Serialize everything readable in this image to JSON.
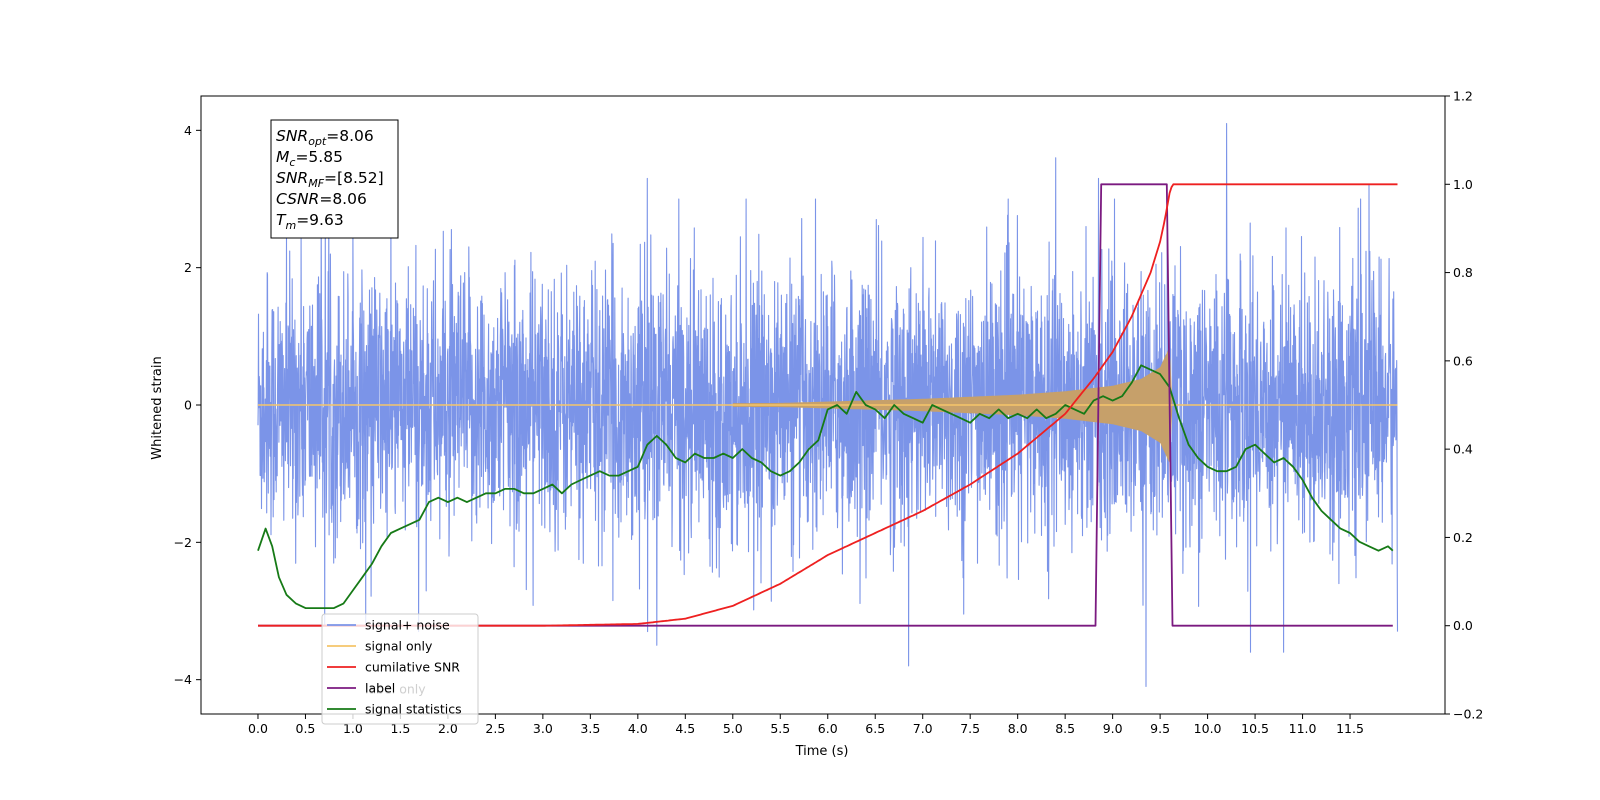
{
  "chart_data": {
    "type": "line",
    "title": "",
    "xlabel": "Time (s)",
    "ylabel": "Whitened strain",
    "y2label": "",
    "xlim": [
      -0.6,
      12.5
    ],
    "ylim": [
      -4.5,
      4.5
    ],
    "y2lim": [
      -0.2,
      1.2
    ],
    "x_ticks": [
      0.0,
      0.5,
      1.0,
      1.5,
      2.0,
      2.5,
      3.0,
      3.5,
      4.0,
      4.5,
      5.0,
      5.5,
      6.0,
      6.5,
      7.0,
      7.5,
      8.0,
      8.5,
      9.0,
      9.5,
      10.0,
      10.5,
      11.0,
      11.5
    ],
    "x_tick_labels": [
      "0.0",
      "0.5",
      "1.0",
      "1.5",
      "2.0",
      "2.5",
      "3.0",
      "3.5",
      "4.0",
      "4.5",
      "5.0",
      "5.5",
      "6.0",
      "6.5",
      "7.0",
      "7.5",
      "8.0",
      "8.5",
      "9.0",
      "9.5",
      "10.0",
      "10.5",
      "11.0",
      "11.5"
    ],
    "y_ticks": [
      -4,
      -2,
      0,
      2,
      4
    ],
    "y_tick_labels": [
      "−4",
      "−2",
      "0",
      "2",
      "4"
    ],
    "y2_ticks": [
      -0.2,
      0.0,
      0.2,
      0.4,
      0.6,
      0.8,
      1.0,
      1.2
    ],
    "y2_tick_labels": [
      "−0.2",
      "0.0",
      "0.2",
      "0.4",
      "0.6",
      "0.8",
      "1.0",
      "1.2"
    ],
    "grid": false,
    "legend_position": "lower-left",
    "annotation": {
      "lines": [
        {
          "base": "SNR",
          "sub": "opt",
          "value": "=8.06"
        },
        {
          "base": "M",
          "sub": "c",
          "value": "=5.85"
        },
        {
          "base": "SNR",
          "sub": "MF",
          "value": "=[8.52]"
        },
        {
          "base": "CSNR",
          "sub": "",
          "value": "=8.06"
        },
        {
          "base": "T",
          "sub": "m",
          "value": "=9.63"
        }
      ]
    },
    "series": [
      {
        "name": "signal+ noise",
        "axis": "left",
        "color": "#7b94e8",
        "x_range": [
          0.0,
          12.0
        ],
        "envelope_approx": 1.5,
        "notable_peaks": [
          [
            0.1,
            1.9
          ],
          [
            1.0,
            2.6
          ],
          [
            4.1,
            3.3
          ],
          [
            8.4,
            3.6
          ],
          [
            8.85,
            3.3
          ],
          [
            9.35,
            -4.1
          ],
          [
            10.2,
            4.1
          ],
          [
            11.7,
            3.2
          ],
          [
            6.85,
            -3.8
          ],
          [
            10.45,
            -3.6
          ],
          [
            10.8,
            -3.6
          ],
          [
            4.2,
            -3.5
          ]
        ]
      },
      {
        "name": "signal only",
        "axis": "left",
        "color": "#f5c56a",
        "fill_color": "#c6a06a",
        "x_range": [
          0.0,
          12.0
        ],
        "amplitude_envelope": [
          [
            0.0,
            0.0
          ],
          [
            5.5,
            0.03
          ],
          [
            6.0,
            0.05
          ],
          [
            7.0,
            0.09
          ],
          [
            8.0,
            0.15
          ],
          [
            8.5,
            0.2
          ],
          [
            9.0,
            0.28
          ],
          [
            9.3,
            0.38
          ],
          [
            9.5,
            0.55
          ],
          [
            9.6,
            0.85
          ],
          [
            9.63,
            0.0
          ],
          [
            12.0,
            0.0
          ]
        ]
      },
      {
        "name": "cumilative SNR",
        "axis": "right",
        "color": "#ee2020",
        "x": [
          0.0,
          3.0,
          4.0,
          4.5,
          5.0,
          5.5,
          6.0,
          6.5,
          7.0,
          7.5,
          8.0,
          8.5,
          8.8,
          9.0,
          9.2,
          9.4,
          9.5,
          9.55,
          9.6,
          9.63,
          10.0,
          11.0,
          12.0
        ],
        "values": [
          0.0,
          0.0,
          0.004,
          0.016,
          0.045,
          0.095,
          0.16,
          0.21,
          0.26,
          0.32,
          0.39,
          0.48,
          0.56,
          0.62,
          0.7,
          0.8,
          0.87,
          0.92,
          0.98,
          1.0,
          1.0,
          1.0,
          1.0
        ]
      },
      {
        "name": "label",
        "axis": "right",
        "color": "#7b1a80",
        "x": [
          0.0,
          8.82,
          8.88,
          9.57,
          9.63,
          11.95
        ],
        "values": [
          0.0,
          0.0,
          1.0,
          1.0,
          0.0,
          0.0
        ]
      },
      {
        "name": "label only",
        "axis": "right",
        "color": "#7b1a80",
        "hidden_behind": "label"
      },
      {
        "name": "signal statistics",
        "axis": "right",
        "color": "#167a16",
        "x": [
          0.0,
          0.08,
          0.15,
          0.22,
          0.3,
          0.4,
          0.5,
          0.6,
          0.7,
          0.8,
          0.9,
          1.0,
          1.1,
          1.2,
          1.3,
          1.4,
          1.5,
          1.6,
          1.7,
          1.8,
          1.9,
          2.0,
          2.1,
          2.2,
          2.3,
          2.4,
          2.5,
          2.6,
          2.7,
          2.8,
          2.9,
          3.0,
          3.1,
          3.2,
          3.3,
          3.4,
          3.5,
          3.6,
          3.7,
          3.8,
          3.9,
          4.0,
          4.1,
          4.2,
          4.3,
          4.4,
          4.5,
          4.6,
          4.7,
          4.8,
          4.9,
          5.0,
          5.1,
          5.2,
          5.3,
          5.4,
          5.5,
          5.6,
          5.7,
          5.8,
          5.9,
          6.0,
          6.1,
          6.2,
          6.3,
          6.4,
          6.5,
          6.6,
          6.7,
          6.8,
          6.9,
          7.0,
          7.1,
          7.2,
          7.3,
          7.4,
          7.5,
          7.6,
          7.7,
          7.8,
          7.9,
          8.0,
          8.1,
          8.2,
          8.3,
          8.4,
          8.5,
          8.6,
          8.7,
          8.8,
          8.9,
          9.0,
          9.1,
          9.2,
          9.3,
          9.4,
          9.5,
          9.6,
          9.7,
          9.8,
          9.9,
          10.0,
          10.1,
          10.2,
          10.3,
          10.4,
          10.5,
          10.6,
          10.7,
          10.8,
          10.9,
          11.0,
          11.1,
          11.2,
          11.3,
          11.4,
          11.5,
          11.6,
          11.7,
          11.8,
          11.9,
          11.95
        ],
        "values": [
          0.17,
          0.22,
          0.18,
          0.11,
          0.07,
          0.05,
          0.04,
          0.04,
          0.04,
          0.04,
          0.05,
          0.08,
          0.11,
          0.14,
          0.18,
          0.21,
          0.22,
          0.23,
          0.24,
          0.28,
          0.29,
          0.28,
          0.29,
          0.28,
          0.29,
          0.3,
          0.3,
          0.31,
          0.31,
          0.3,
          0.3,
          0.31,
          0.32,
          0.3,
          0.32,
          0.33,
          0.34,
          0.35,
          0.34,
          0.34,
          0.35,
          0.36,
          0.41,
          0.43,
          0.41,
          0.38,
          0.37,
          0.39,
          0.38,
          0.38,
          0.39,
          0.38,
          0.4,
          0.38,
          0.37,
          0.35,
          0.34,
          0.35,
          0.37,
          0.4,
          0.42,
          0.49,
          0.5,
          0.48,
          0.53,
          0.5,
          0.49,
          0.47,
          0.5,
          0.48,
          0.47,
          0.46,
          0.5,
          0.49,
          0.48,
          0.47,
          0.46,
          0.48,
          0.47,
          0.49,
          0.47,
          0.48,
          0.47,
          0.49,
          0.47,
          0.48,
          0.5,
          0.49,
          0.48,
          0.51,
          0.52,
          0.51,
          0.52,
          0.55,
          0.59,
          0.58,
          0.57,
          0.54,
          0.47,
          0.41,
          0.38,
          0.36,
          0.35,
          0.35,
          0.36,
          0.4,
          0.41,
          0.39,
          0.37,
          0.38,
          0.36,
          0.33,
          0.29,
          0.26,
          0.24,
          0.22,
          0.21,
          0.19,
          0.18,
          0.17,
          0.18,
          0.17
        ]
      }
    ]
  }
}
